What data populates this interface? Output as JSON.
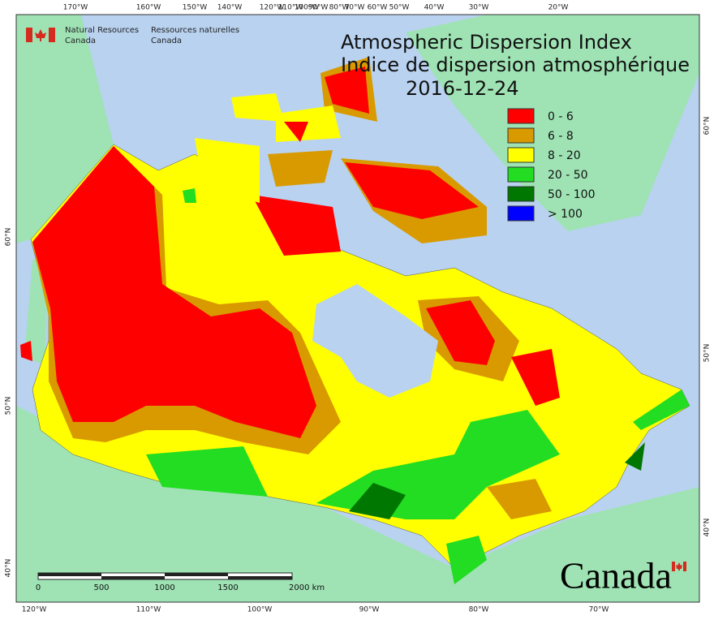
{
  "header": {
    "agency_en": [
      "Natural Resources",
      "Canada"
    ],
    "agency_fr": [
      "Ressources naturelles",
      "Canada"
    ]
  },
  "title": {
    "lines": [
      "Atmospheric Dispersion Index",
      "Indice de dispersion atmosphérique"
    ],
    "date": "2016-12-24"
  },
  "legend": [
    {
      "label": "0 - 6",
      "color": "#ff0000"
    },
    {
      "label": "6 - 8",
      "color": "#d99a00"
    },
    {
      "label": "8 - 20",
      "color": "#ffff00"
    },
    {
      "label": "20 - 50",
      "color": "#22dd22"
    },
    {
      "label": "50 - 100",
      "color": "#007700"
    },
    {
      "label": "> 100",
      "color": "#0000ff"
    }
  ],
  "graticule": {
    "top": [
      "170°W",
      "160°W",
      "150°W",
      "140°W",
      "120°W",
      "110°W",
      "100°W",
      "90°W",
      "80°W",
      "70°W",
      "60°W",
      "50°W",
      "40°W",
      "30°W",
      "20°W"
    ],
    "bottom": [
      "120°W",
      "110°W",
      "100°W",
      "90°W",
      "80°W",
      "70°W"
    ],
    "left": [
      "60°N",
      "50°N",
      "40°N"
    ],
    "right": [
      "60°N",
      "50°N",
      "40°N"
    ]
  },
  "scale_bar": {
    "labels": [
      "0",
      "500",
      "1000",
      "1500",
      "2000 km"
    ]
  },
  "wordmark": "Canada"
}
